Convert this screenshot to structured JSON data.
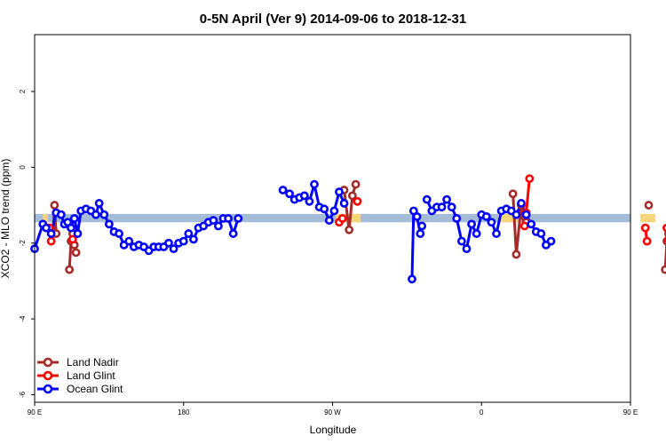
{
  "chart_data": {
    "type": "line",
    "title": "0-5N April (Ver 9)   2014-09-06 to 2018-12-31",
    "xlabel": "Longitude",
    "ylabel": "XCO2 - MLO trend (ppm)",
    "xlim": [
      90,
      450
    ],
    "ylim": [
      -6.2,
      3.5
    ],
    "x_ticks": [
      90,
      180,
      270,
      360,
      450
    ],
    "x_tick_labels": [
      "90 E",
      "180",
      "90 W",
      "0",
      "90 E",
      "180"
    ],
    "x_tick_positions": [
      90,
      180,
      270,
      360,
      450,
      540
    ],
    "y_ticks": [
      -6,
      -4,
      -2,
      0,
      2
    ],
    "y_tick_labels": [
      "-6",
      "-4",
      "-2",
      "0",
      "2"
    ],
    "grid": false,
    "legend_position": "bottom-left",
    "reference_band": {
      "y_low": -1.45,
      "y_high": -1.23,
      "color": "#a4bcd8",
      "land_color": "#f7d57a",
      "land_segments": [
        [
          95,
          98
        ],
        [
          272,
          287
        ],
        [
          370,
          384
        ],
        [
          456,
          465
        ]
      ]
    },
    "series": [
      {
        "name": "Land Nadir",
        "color": "#a52a2a",
        "segments": [
          [
            [
              101,
              -1.75
            ],
            [
              102,
              -1.0
            ],
            [
              103,
              -1.75
            ]
          ],
          [
            [
              111,
              -2.7
            ],
            [
              112,
              -1.95
            ],
            [
              113,
              -1.75
            ],
            [
              114,
              -2.05
            ],
            [
              115,
              -2.25
            ]
          ],
          [
            [
              277,
              -0.6
            ],
            [
              280,
              -1.65
            ],
            [
              282,
              -0.75
            ],
            [
              284,
              -0.45
            ]
          ],
          [
            [
              379,
              -0.7
            ],
            [
              381,
              -2.3
            ],
            [
              384,
              -1.0
            ],
            [
              386,
              -1.3
            ],
            [
              387,
              -1.45
            ]
          ],
          [
            [
              461,
              -1.0
            ]
          ],
          [
            [
              471,
              -2.7
            ],
            [
              472,
              -1.95
            ],
            [
              473,
              -1.75
            ],
            [
              474,
              -2.05
            ],
            [
              475,
              -2.25
            ]
          ]
        ]
      },
      {
        "name": "Land Glint",
        "color": "#ff0000",
        "segments": [
          [
            [
              99,
              -1.6
            ],
            [
              100,
              -1.95
            ]
          ],
          [
            [
              112,
              -1.6
            ],
            [
              113,
              -1.9
            ]
          ],
          [
            [
              274,
              -1.45
            ],
            [
              276,
              -1.35
            ]
          ],
          [
            [
              285,
              -0.9
            ]
          ],
          [
            [
              386,
              -1.55
            ],
            [
              387,
              -1.2
            ],
            [
              389,
              -0.3
            ]
          ],
          [
            [
              459,
              -1.6
            ],
            [
              460,
              -1.95
            ]
          ],
          [
            [
              472,
              -1.6
            ],
            [
              473,
              -1.9
            ]
          ]
        ]
      },
      {
        "name": "Ocean Glint",
        "color": "#0000ff",
        "segments": [
          [
            [
              90,
              -2.15
            ],
            [
              95,
              -1.5
            ],
            [
              97,
              -1.6
            ],
            [
              100,
              -1.75
            ],
            [
              103,
              -1.2
            ],
            [
              106,
              -1.25
            ],
            [
              108,
              -1.5
            ],
            [
              110,
              -1.45
            ],
            [
              112,
              -1.6
            ],
            [
              114,
              -1.35
            ],
            [
              116,
              -1.75
            ],
            [
              118,
              -1.15
            ],
            [
              121,
              -1.1
            ],
            [
              124,
              -1.15
            ],
            [
              127,
              -1.25
            ],
            [
              129,
              -0.95
            ],
            [
              132,
              -1.25
            ],
            [
              135,
              -1.5
            ],
            [
              138,
              -1.7
            ],
            [
              141,
              -1.75
            ],
            [
              144,
              -2.05
            ],
            [
              147,
              -1.95
            ],
            [
              150,
              -2.1
            ],
            [
              153,
              -2.05
            ],
            [
              156,
              -2.1
            ],
            [
              159,
              -2.2
            ],
            [
              162,
              -2.1
            ],
            [
              165,
              -2.1
            ],
            [
              168,
              -2.1
            ],
            [
              171,
              -2.0
            ],
            [
              174,
              -2.15
            ],
            [
              177,
              -2.0
            ],
            [
              180,
              -1.95
            ],
            [
              183,
              -1.75
            ],
            [
              186,
              -1.9
            ],
            [
              189,
              -1.6
            ],
            [
              192,
              -1.55
            ],
            [
              195,
              -1.45
            ],
            [
              198,
              -1.4
            ],
            [
              201,
              -1.55
            ],
            [
              204,
              -1.35
            ],
            [
              207,
              -1.35
            ],
            [
              210,
              -1.75
            ],
            [
              213,
              -1.35
            ]
          ],
          [
            [
              240,
              -0.6
            ],
            [
              244,
              -0.7
            ],
            [
              247,
              -0.85
            ],
            [
              250,
              -0.8
            ],
            [
              253,
              -0.75
            ],
            [
              256,
              -0.9
            ],
            [
              259,
              -0.45
            ],
            [
              262,
              -1.05
            ],
            [
              265,
              -1.1
            ],
            [
              268,
              -1.4
            ],
            [
              271,
              -1.15
            ],
            [
              274,
              -0.65
            ],
            [
              277,
              -0.95
            ]
          ],
          [
            [
              318,
              -2.95
            ],
            [
              319,
              -1.15
            ],
            [
              321,
              -1.3
            ],
            [
              323,
              -1.75
            ],
            [
              324,
              -1.55
            ]
          ],
          [
            [
              327,
              -0.85
            ],
            [
              330,
              -1.15
            ],
            [
              333,
              -1.05
            ],
            [
              336,
              -1.05
            ],
            [
              339,
              -0.85
            ],
            [
              342,
              -1.05
            ],
            [
              345,
              -1.35
            ],
            [
              348,
              -1.95
            ],
            [
              351,
              -2.15
            ],
            [
              354,
              -1.5
            ],
            [
              357,
              -1.75
            ],
            [
              360,
              -1.25
            ],
            [
              363,
              -1.3
            ],
            [
              366,
              -1.45
            ],
            [
              369,
              -1.75
            ],
            [
              372,
              -1.15
            ],
            [
              375,
              -1.1
            ],
            [
              378,
              -1.15
            ],
            [
              381,
              -1.25
            ],
            [
              384,
              -0.95
            ],
            [
              387,
              -1.25
            ],
            [
              390,
              -1.5
            ],
            [
              393,
              -1.7
            ],
            [
              396,
              -1.75
            ],
            [
              399,
              -2.05
            ],
            [
              402,
              -1.95
            ]
          ]
        ]
      }
    ]
  }
}
